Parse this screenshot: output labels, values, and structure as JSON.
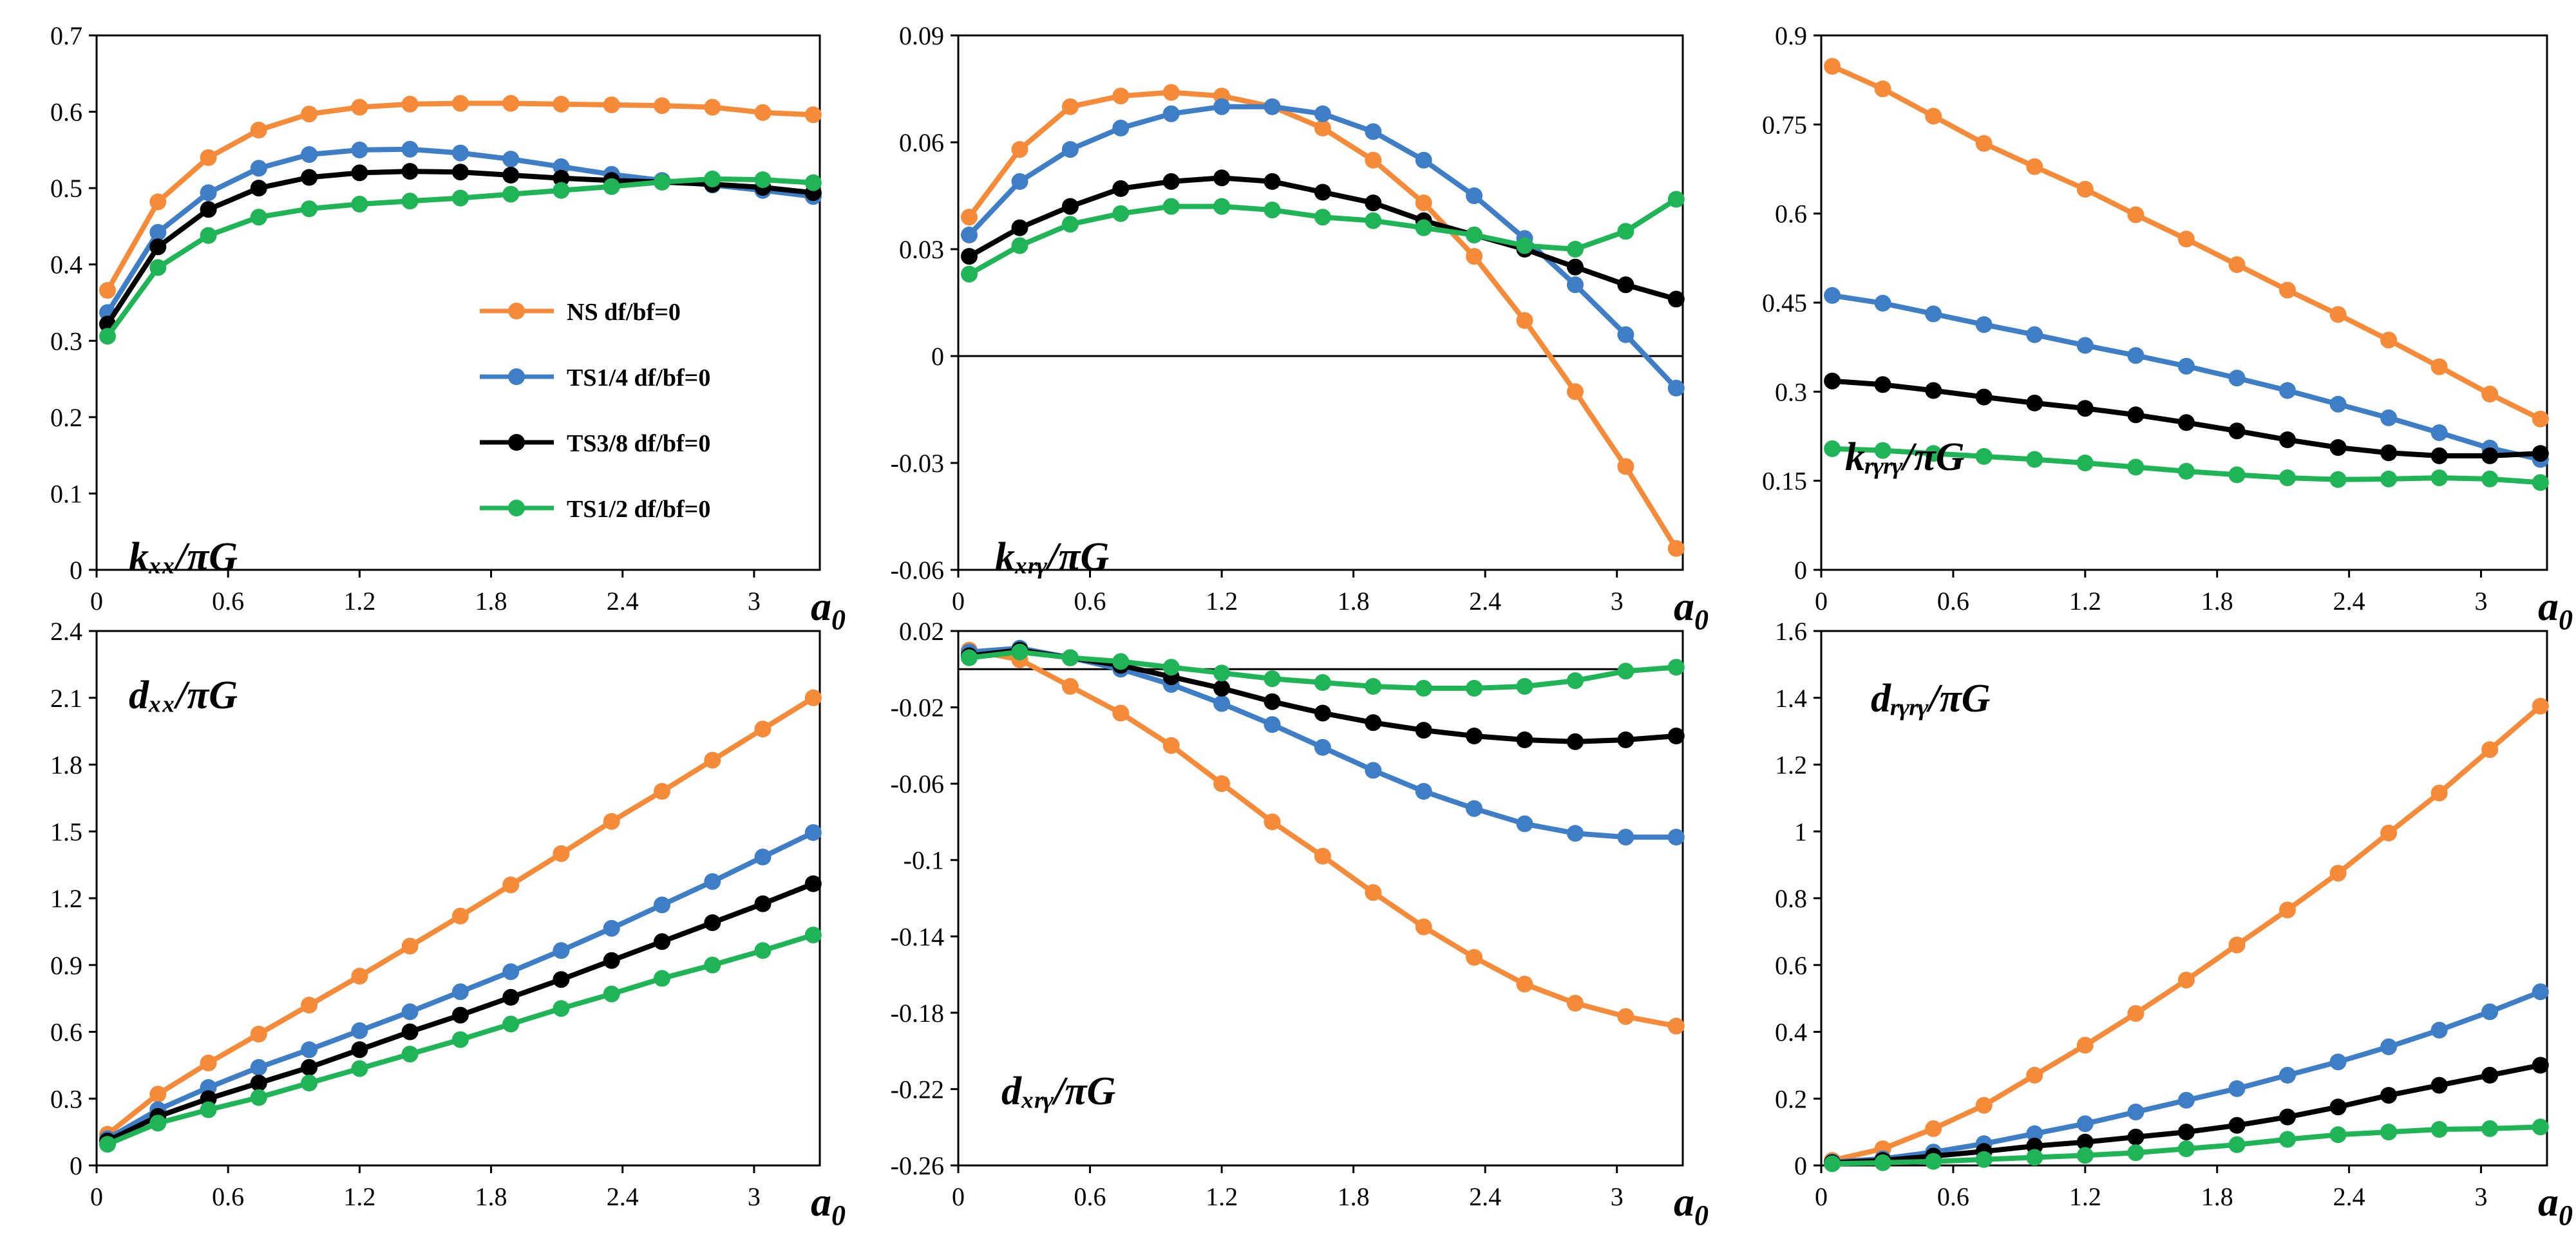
{
  "figure": {
    "panels": [
      {
        "name": "kxx",
        "label": "kₓₓ/πG"
      },
      {
        "name": "kxry",
        "label": "kₓᵣᵧ/πG"
      },
      {
        "name": "kryry",
        "label": "kᵣᵧᵣᵧ/πG"
      },
      {
        "name": "dxx",
        "label": "dₓₓ/πG"
      },
      {
        "name": "dxry",
        "label": "dₓᵣᵧ/πG"
      },
      {
        "name": "dryry",
        "label": "dᵣᵧᵣᵧ/πG"
      }
    ]
  },
  "colors": {
    "NS": "#F58A38",
    "TS14": "#3D7EC6",
    "TS38": "#000000",
    "TS12": "#1FB557"
  },
  "chart_data": [
    {
      "type": "line",
      "name": "kxx",
      "title": "kxx/πG",
      "xlabel": "a0",
      "ylabel": "",
      "xlim": [
        0,
        3.3
      ],
      "ylim": [
        0,
        0.7
      ],
      "xticks": [
        "0",
        "0.6",
        "1.2",
        "1.8",
        "2.4",
        "3"
      ],
      "yticks": [
        "0",
        "0.1",
        "0.2",
        "0.3",
        "0.4",
        "0.5",
        "0.6",
        "0.7"
      ],
      "x": [
        0.05,
        0.28,
        0.51,
        0.74,
        0.97,
        1.2,
        1.43,
        1.66,
        1.89,
        2.12,
        2.35,
        2.58,
        2.81,
        3.04,
        3.27
      ],
      "legend": {
        "position": "center",
        "entries": [
          "NS df/bf=0",
          "TS1/4 df/bf=0",
          "TS3/8 df/bf=0",
          "TS1/2 df/bf=0"
        ]
      },
      "series": [
        {
          "name": "NS df/bf=0",
          "values": [
            0.366,
            0.482,
            0.54,
            0.576,
            0.597,
            0.606,
            0.61,
            0.611,
            0.611,
            0.61,
            0.609,
            0.608,
            0.606,
            0.599,
            0.596
          ]
        },
        {
          "name": "TS1/4 df/bf=0",
          "values": [
            0.337,
            0.442,
            0.494,
            0.526,
            0.544,
            0.55,
            0.551,
            0.546,
            0.538,
            0.528,
            0.518,
            0.51,
            0.504,
            0.497,
            0.489
          ]
        },
        {
          "name": "TS3/8 df/bf=0",
          "values": [
            0.322,
            0.423,
            0.472,
            0.5,
            0.514,
            0.52,
            0.522,
            0.521,
            0.517,
            0.513,
            0.51,
            0.508,
            0.505,
            0.501,
            0.494
          ]
        },
        {
          "name": "TS1/2 df/bf=0",
          "values": [
            0.306,
            0.396,
            0.438,
            0.462,
            0.473,
            0.479,
            0.483,
            0.487,
            0.492,
            0.497,
            0.502,
            0.508,
            0.512,
            0.511,
            0.507
          ]
        }
      ]
    },
    {
      "type": "line",
      "name": "kxry",
      "title": "kxry/πG",
      "xlabel": "a0",
      "ylabel": "",
      "xlim": [
        0,
        3.3
      ],
      "ylim": [
        -0.06,
        0.09
      ],
      "xticks": [
        "0",
        "0.6",
        "1.2",
        "1.8",
        "2.4",
        "3"
      ],
      "yticks": [
        "-0.06",
        "-0.03",
        "0",
        "0.03",
        "0.06",
        "0.09"
      ],
      "x": [
        0.05,
        0.28,
        0.51,
        0.74,
        0.97,
        1.2,
        1.43,
        1.66,
        1.89,
        2.12,
        2.35,
        2.58,
        2.81,
        3.04,
        3.27
      ],
      "series": [
        {
          "name": "NS df/bf=0",
          "values": [
            0.039,
            0.058,
            0.07,
            0.073,
            0.074,
            0.073,
            0.07,
            0.064,
            0.055,
            0.043,
            0.028,
            0.01,
            -0.01,
            -0.031,
            -0.054
          ]
        },
        {
          "name": "TS1/4 df/bf=0",
          "values": [
            0.034,
            0.049,
            0.058,
            0.064,
            0.068,
            0.07,
            0.07,
            0.068,
            0.063,
            0.055,
            0.045,
            0.033,
            0.02,
            0.006,
            -0.009
          ]
        },
        {
          "name": "TS3/8 df/bf=0",
          "values": [
            0.028,
            0.036,
            0.042,
            0.047,
            0.049,
            0.05,
            0.049,
            0.046,
            0.043,
            0.038,
            0.034,
            0.03,
            0.025,
            0.02,
            0.016
          ]
        },
        {
          "name": "TS1/2 df/bf=0",
          "values": [
            0.023,
            0.031,
            0.037,
            0.04,
            0.042,
            0.042,
            0.041,
            0.039,
            0.038,
            0.036,
            0.034,
            0.031,
            0.03,
            0.035,
            0.044
          ]
        }
      ]
    },
    {
      "type": "line",
      "name": "kryry",
      "title": "kryry/πG",
      "xlabel": "a0",
      "ylabel": "",
      "xlim": [
        0,
        3.3
      ],
      "ylim": [
        0,
        0.9
      ],
      "xticks": [
        "0",
        "0.6",
        "1.2",
        "1.8",
        "2.4",
        "3"
      ],
      "yticks": [
        "0",
        "0.15",
        "0.3",
        "0.45",
        "0.6",
        "0.75",
        "0.9"
      ],
      "x": [
        0.05,
        0.28,
        0.51,
        0.74,
        0.97,
        1.2,
        1.43,
        1.66,
        1.89,
        2.12,
        2.35,
        2.58,
        2.81,
        3.04,
        3.27
      ],
      "series": [
        {
          "name": "NS df/bf=0",
          "values": [
            0.848,
            0.81,
            0.764,
            0.718,
            0.679,
            0.641,
            0.598,
            0.557,
            0.514,
            0.471,
            0.43,
            0.387,
            0.342,
            0.296,
            0.254
          ]
        },
        {
          "name": "TS1/4 df/bf=0",
          "values": [
            0.462,
            0.449,
            0.431,
            0.413,
            0.396,
            0.378,
            0.361,
            0.343,
            0.323,
            0.302,
            0.279,
            0.256,
            0.231,
            0.205,
            0.186
          ]
        },
        {
          "name": "TS3/8 df/bf=0",
          "values": [
            0.318,
            0.312,
            0.302,
            0.291,
            0.281,
            0.272,
            0.261,
            0.248,
            0.234,
            0.219,
            0.206,
            0.197,
            0.192,
            0.192,
            0.196
          ]
        },
        {
          "name": "TS1/2 df/bf=0",
          "values": [
            0.204,
            0.201,
            0.196,
            0.191,
            0.186,
            0.18,
            0.173,
            0.166,
            0.16,
            0.155,
            0.152,
            0.153,
            0.155,
            0.153,
            0.147
          ]
        }
      ]
    },
    {
      "type": "line",
      "name": "dxx",
      "title": "dxx/πG",
      "xlabel": "a0",
      "ylabel": "",
      "xlim": [
        0,
        3.3
      ],
      "ylim": [
        0,
        2.4
      ],
      "xticks": [
        "0",
        "0.6",
        "1.2",
        "1.8",
        "2.4",
        "3"
      ],
      "yticks": [
        "0",
        "0.3",
        "0.6",
        "0.9",
        "1.2",
        "1.5",
        "1.8",
        "2.1",
        "2.4"
      ],
      "x": [
        0.05,
        0.28,
        0.51,
        0.74,
        0.97,
        1.2,
        1.43,
        1.66,
        1.89,
        2.12,
        2.35,
        2.58,
        2.81,
        3.04,
        3.27
      ],
      "series": [
        {
          "name": "NS df/bf=0",
          "values": [
            0.14,
            0.32,
            0.46,
            0.59,
            0.72,
            0.85,
            0.985,
            1.12,
            1.26,
            1.4,
            1.545,
            1.68,
            1.82,
            1.96,
            2.1
          ]
        },
        {
          "name": "TS1/4 df/bf=0",
          "values": [
            0.12,
            0.25,
            0.35,
            0.44,
            0.52,
            0.605,
            0.69,
            0.78,
            0.87,
            0.965,
            1.065,
            1.17,
            1.275,
            1.385,
            1.495
          ]
        },
        {
          "name": "TS3/8 df/bf=0",
          "values": [
            0.11,
            0.22,
            0.3,
            0.37,
            0.44,
            0.52,
            0.6,
            0.675,
            0.755,
            0.835,
            0.92,
            1.005,
            1.09,
            1.175,
            1.265
          ]
        },
        {
          "name": "TS1/2 df/bf=0",
          "values": [
            0.095,
            0.19,
            0.25,
            0.305,
            0.37,
            0.435,
            0.5,
            0.565,
            0.635,
            0.705,
            0.77,
            0.84,
            0.9,
            0.965,
            1.035
          ]
        }
      ]
    },
    {
      "type": "line",
      "name": "dxry",
      "title": "dxry/πG",
      "xlabel": "a0",
      "ylabel": "",
      "xlim": [
        0,
        3.3
      ],
      "ylim": [
        -0.26,
        0.02
      ],
      "xticks": [
        "0",
        "0.6",
        "1.2",
        "1.8",
        "2.4",
        "3"
      ],
      "yticks": [
        "-0.26",
        "-0.22",
        "-0.18",
        "-0.14",
        "-0.1",
        "-0.06",
        "-0.02",
        "0.02"
      ],
      "x": [
        0.05,
        0.28,
        0.51,
        0.74,
        0.97,
        1.2,
        1.43,
        1.66,
        1.89,
        2.12,
        2.35,
        2.58,
        2.81,
        3.04,
        3.27
      ],
      "series": [
        {
          "name": "NS df/bf=0",
          "values": [
            0.01,
            0.005,
            -0.009,
            -0.023,
            -0.04,
            -0.06,
            -0.08,
            -0.098,
            -0.117,
            -0.135,
            -0.151,
            -0.165,
            -0.175,
            -0.182,
            -0.187
          ]
        },
        {
          "name": "TS1/4 df/bf=0",
          "values": [
            0.009,
            0.011,
            0.006,
            0.0,
            -0.008,
            -0.018,
            -0.029,
            -0.041,
            -0.053,
            -0.064,
            -0.073,
            -0.081,
            -0.086,
            -0.088,
            -0.088
          ]
        },
        {
          "name": "TS3/8 df/bf=0",
          "values": [
            0.007,
            0.01,
            0.006,
            0.002,
            -0.004,
            -0.01,
            -0.017,
            -0.023,
            -0.028,
            -0.032,
            -0.035,
            -0.037,
            -0.038,
            -0.037,
            -0.035
          ]
        },
        {
          "name": "TS1/2 df/bf=0",
          "values": [
            0.006,
            0.009,
            0.006,
            0.004,
            0.001,
            -0.002,
            -0.005,
            -0.007,
            -0.009,
            -0.01,
            -0.01,
            -0.009,
            -0.006,
            -0.001,
            0.001
          ]
        }
      ]
    },
    {
      "type": "line",
      "name": "dryry",
      "title": "dryry/πG",
      "xlabel": "a0",
      "ylabel": "",
      "xlim": [
        0,
        3.3
      ],
      "ylim": [
        0,
        1.6
      ],
      "xticks": [
        "0",
        "0.6",
        "1.2",
        "1.8",
        "2.4",
        "3"
      ],
      "yticks": [
        "0",
        "0.2",
        "0.4",
        "0.6",
        "0.8",
        "1",
        "1.2",
        "1.4",
        "1.6"
      ],
      "x": [
        0.05,
        0.28,
        0.51,
        0.74,
        0.97,
        1.2,
        1.43,
        1.66,
        1.89,
        2.12,
        2.35,
        2.58,
        2.81,
        3.04,
        3.27
      ],
      "series": [
        {
          "name": "NS df/bf=0",
          "values": [
            0.015,
            0.05,
            0.11,
            0.18,
            0.27,
            0.36,
            0.455,
            0.555,
            0.66,
            0.765,
            0.875,
            0.995,
            1.115,
            1.245,
            1.375
          ]
        },
        {
          "name": "TS1/4 df/bf=0",
          "values": [
            0.01,
            0.02,
            0.04,
            0.065,
            0.095,
            0.125,
            0.16,
            0.195,
            0.23,
            0.27,
            0.31,
            0.355,
            0.405,
            0.46,
            0.52
          ]
        },
        {
          "name": "TS3/8 df/bf=0",
          "values": [
            0.008,
            0.015,
            0.028,
            0.042,
            0.058,
            0.07,
            0.085,
            0.1,
            0.12,
            0.145,
            0.175,
            0.21,
            0.24,
            0.27,
            0.3
          ]
        },
        {
          "name": "TS1/2 df/bf=0",
          "values": [
            0.005,
            0.008,
            0.012,
            0.018,
            0.024,
            0.03,
            0.038,
            0.05,
            0.062,
            0.078,
            0.092,
            0.1,
            0.108,
            0.11,
            0.115
          ]
        }
      ]
    }
  ]
}
